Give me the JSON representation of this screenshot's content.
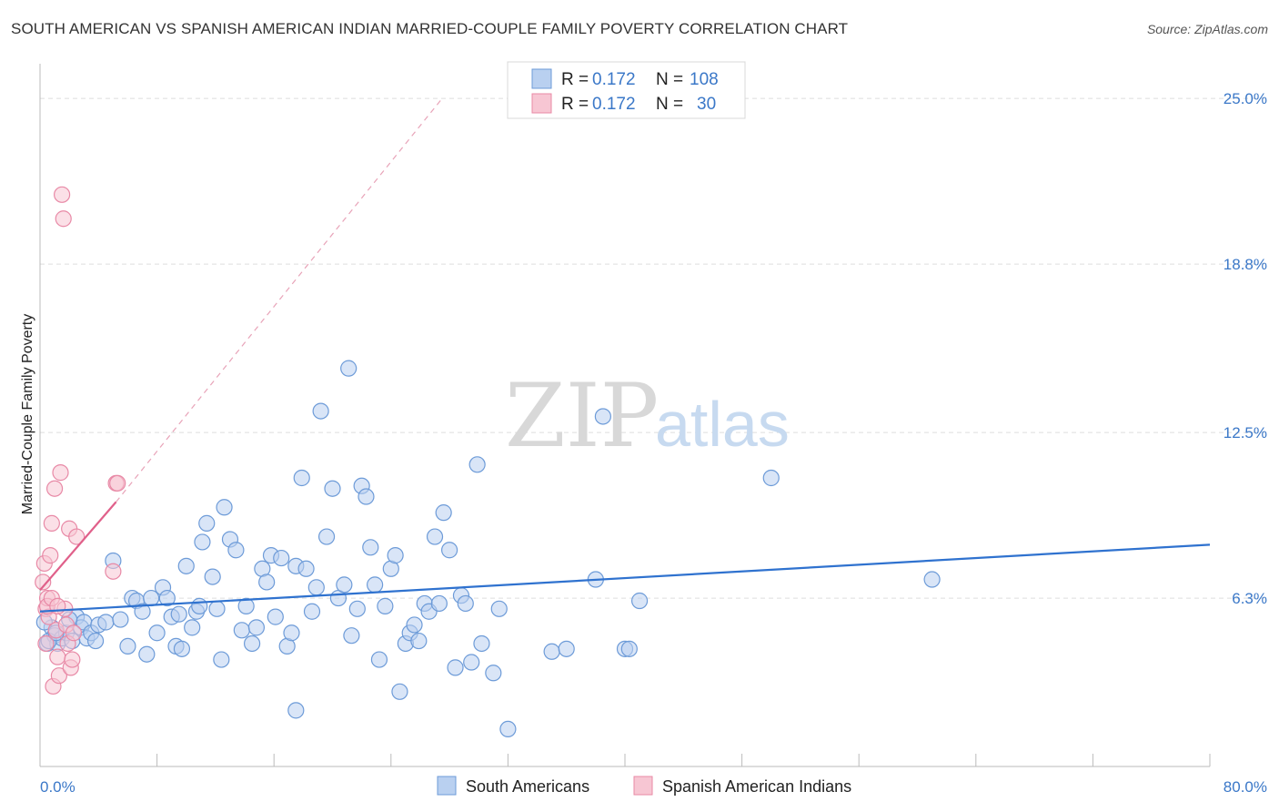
{
  "title": "SOUTH AMERICAN VS SPANISH AMERICAN INDIAN MARRIED-COUPLE FAMILY POVERTY CORRELATION CHART",
  "source": "Source: ZipAtlas.com",
  "watermark": {
    "zip": "ZIP",
    "atlas": "atlas"
  },
  "colors": {
    "blue_fill": "#b9d0f0",
    "blue_stroke": "#6d9bd8",
    "blue_line": "#2f72cf",
    "pink_fill": "#f7c6d3",
    "pink_stroke": "#e889a6",
    "pink_line": "#e0608a",
    "grid": "#dddddd",
    "label": "#3b78c8"
  },
  "legend": {
    "rows": [
      {
        "r_label": "R =",
        "r_value": "0.172",
        "n_label": "N =",
        "n_value": "108"
      },
      {
        "r_label": "R =",
        "r_value": "0.172",
        "n_label": "N =",
        "n_value": "30"
      }
    ]
  },
  "chart_data": {
    "type": "scatter",
    "ylabel": "Married-Couple Family Poverty",
    "xlim": [
      0,
      80
    ],
    "ylim": [
      0,
      26.3
    ],
    "x_tick_labels": [
      "0.0%",
      "80.0%"
    ],
    "y_ticks": [
      6.3,
      12.5,
      18.8,
      25.0
    ],
    "y_tick_labels": [
      "6.3%",
      "12.5%",
      "18.8%",
      "25.0%"
    ],
    "grid": true,
    "legend_position": "top-center",
    "series": [
      {
        "name": "South Americans",
        "trend": {
          "x": [
            0,
            80
          ],
          "y": [
            5.8,
            8.3
          ]
        },
        "points": [
          [
            0.5,
            4.6
          ],
          [
            0.8,
            5.2
          ],
          [
            1.0,
            4.9
          ],
          [
            1.2,
            4.6
          ],
          [
            1.5,
            4.8
          ],
          [
            1.8,
            5.0
          ],
          [
            2.2,
            4.7
          ],
          [
            2.5,
            5.6
          ],
          [
            2.8,
            5.2
          ],
          [
            3.0,
            5.4
          ],
          [
            3.2,
            4.8
          ],
          [
            3.5,
            5.0
          ],
          [
            4.0,
            5.3
          ],
          [
            4.5,
            5.4
          ],
          [
            5.0,
            7.7
          ],
          [
            5.5,
            5.5
          ],
          [
            6.0,
            4.5
          ],
          [
            6.3,
            6.3
          ],
          [
            6.6,
            6.2
          ],
          [
            7.0,
            5.8
          ],
          [
            7.3,
            4.2
          ],
          [
            7.6,
            6.3
          ],
          [
            8.0,
            5.0
          ],
          [
            8.4,
            6.7
          ],
          [
            8.7,
            6.3
          ],
          [
            9.0,
            5.6
          ],
          [
            9.3,
            4.5
          ],
          [
            9.7,
            4.4
          ],
          [
            10.0,
            7.5
          ],
          [
            10.4,
            5.2
          ],
          [
            10.7,
            5.8
          ],
          [
            11.1,
            8.4
          ],
          [
            11.4,
            9.1
          ],
          [
            11.8,
            7.1
          ],
          [
            12.1,
            5.9
          ],
          [
            12.4,
            4.0
          ],
          [
            12.6,
            9.7
          ],
          [
            13.0,
            8.5
          ],
          [
            13.4,
            8.1
          ],
          [
            13.8,
            5.1
          ],
          [
            14.1,
            6.0
          ],
          [
            14.5,
            4.6
          ],
          [
            14.8,
            5.2
          ],
          [
            15.2,
            7.4
          ],
          [
            15.5,
            6.9
          ],
          [
            15.8,
            7.9
          ],
          [
            16.1,
            5.6
          ],
          [
            16.5,
            7.8
          ],
          [
            16.9,
            4.5
          ],
          [
            17.2,
            5.0
          ],
          [
            17.5,
            7.5
          ],
          [
            17.9,
            10.8
          ],
          [
            18.2,
            7.4
          ],
          [
            18.6,
            5.8
          ],
          [
            18.9,
            6.7
          ],
          [
            19.2,
            13.3
          ],
          [
            19.6,
            8.6
          ],
          [
            20.0,
            10.4
          ],
          [
            20.4,
            6.3
          ],
          [
            20.8,
            6.8
          ],
          [
            21.1,
            14.9
          ],
          [
            21.3,
            4.9
          ],
          [
            21.7,
            5.9
          ],
          [
            22.0,
            10.5
          ],
          [
            22.3,
            10.1
          ],
          [
            22.6,
            8.2
          ],
          [
            22.9,
            6.8
          ],
          [
            23.2,
            4.0
          ],
          [
            23.6,
            6.0
          ],
          [
            24.0,
            7.4
          ],
          [
            24.3,
            7.9
          ],
          [
            24.6,
            2.8
          ],
          [
            25.0,
            4.6
          ],
          [
            25.3,
            5.0
          ],
          [
            25.6,
            5.3
          ],
          [
            25.9,
            4.7
          ],
          [
            26.3,
            6.1
          ],
          [
            26.6,
            5.8
          ],
          [
            27.0,
            8.6
          ],
          [
            27.3,
            6.1
          ],
          [
            27.6,
            9.5
          ],
          [
            28.0,
            8.1
          ],
          [
            28.4,
            3.7
          ],
          [
            28.8,
            6.4
          ],
          [
            29.1,
            6.1
          ],
          [
            29.5,
            3.9
          ],
          [
            29.9,
            11.3
          ],
          [
            30.2,
            4.6
          ],
          [
            31.0,
            3.5
          ],
          [
            31.4,
            5.9
          ],
          [
            32.0,
            1.4
          ],
          [
            17.5,
            2.1
          ],
          [
            35.0,
            4.3
          ],
          [
            36.0,
            4.4
          ],
          [
            38.0,
            7.0
          ],
          [
            38.5,
            13.1
          ],
          [
            40.0,
            4.4
          ],
          [
            40.3,
            4.4
          ],
          [
            41.0,
            6.2
          ],
          [
            50.0,
            10.8
          ],
          [
            61.0,
            7.0
          ],
          [
            0.3,
            5.4
          ],
          [
            0.6,
            4.7
          ],
          [
            1.1,
            5.0
          ],
          [
            2.0,
            5.5
          ],
          [
            3.8,
            4.7
          ],
          [
            9.5,
            5.7
          ],
          [
            10.9,
            6.0
          ]
        ]
      },
      {
        "name": "Spanish American Indians",
        "trend": {
          "x": [
            0,
            5.2
          ],
          "y": [
            6.6,
            9.9
          ]
        },
        "trend_dashed": {
          "x": [
            5.2,
            27.5
          ],
          "y": [
            9.9,
            25.0
          ]
        },
        "points": [
          [
            0.2,
            6.9
          ],
          [
            0.3,
            7.6
          ],
          [
            0.4,
            5.9
          ],
          [
            0.5,
            6.3
          ],
          [
            0.6,
            5.6
          ],
          [
            0.7,
            7.9
          ],
          [
            0.8,
            9.1
          ],
          [
            0.9,
            3.0
          ],
          [
            1.0,
            10.4
          ],
          [
            1.1,
            5.1
          ],
          [
            1.2,
            4.1
          ],
          [
            1.3,
            3.4
          ],
          [
            1.4,
            11.0
          ],
          [
            1.5,
            21.4
          ],
          [
            1.6,
            20.5
          ],
          [
            1.7,
            5.9
          ],
          [
            1.8,
            5.3
          ],
          [
            1.9,
            4.6
          ],
          [
            2.0,
            8.9
          ],
          [
            2.1,
            3.7
          ],
          [
            2.2,
            4.0
          ],
          [
            2.3,
            5.0
          ],
          [
            2.5,
            8.6
          ],
          [
            0.5,
            6.0
          ],
          [
            0.8,
            6.3
          ],
          [
            1.2,
            6.0
          ],
          [
            5.0,
            7.3
          ],
          [
            5.2,
            10.6
          ],
          [
            5.3,
            10.6
          ],
          [
            0.4,
            4.6
          ]
        ]
      }
    ]
  },
  "bottom_legend": [
    {
      "label": "South Americans"
    },
    {
      "label": "Spanish American Indians"
    }
  ]
}
